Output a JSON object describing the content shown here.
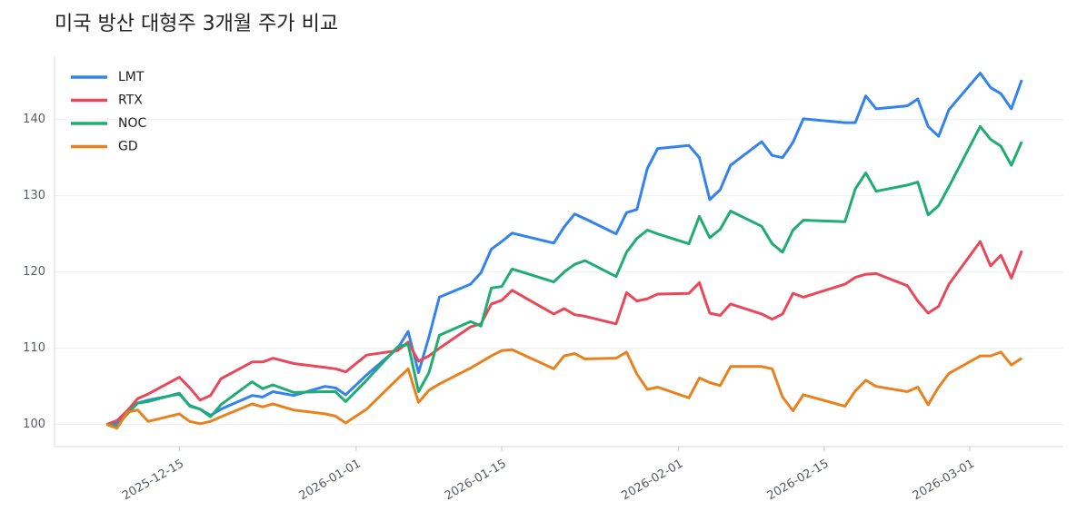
{
  "chart_data": {
    "type": "line",
    "title": "미국 방산 대형주 3개월 주가 비교",
    "x": [
      "2025-12-08",
      "2025-12-09",
      "2025-12-10",
      "2025-12-11",
      "2025-12-12",
      "2025-12-15",
      "2025-12-16",
      "2025-12-17",
      "2025-12-18",
      "2025-12-19",
      "2025-12-22",
      "2025-12-23",
      "2025-12-24",
      "2025-12-26",
      "2025-12-29",
      "2025-12-30",
      "2025-12-31",
      "2026-01-02",
      "2026-01-05",
      "2026-01-06",
      "2026-01-07",
      "2026-01-08",
      "2026-01-09",
      "2026-01-12",
      "2026-01-13",
      "2026-01-14",
      "2026-01-15",
      "2026-01-16",
      "2026-01-20",
      "2026-01-21",
      "2026-01-22",
      "2026-01-23",
      "2026-01-26",
      "2026-01-27",
      "2026-01-28",
      "2026-01-29",
      "2026-01-30",
      "2026-02-02",
      "2026-02-03",
      "2026-02-04",
      "2026-02-05",
      "2026-02-06",
      "2026-02-09",
      "2026-02-10",
      "2026-02-11",
      "2026-02-12",
      "2026-02-13",
      "2026-02-17",
      "2026-02-18",
      "2026-02-19",
      "2026-02-20",
      "2026-02-23",
      "2026-02-24",
      "2026-02-25",
      "2026-02-26",
      "2026-02-27",
      "2026-03-02",
      "2026-03-03",
      "2026-03-04",
      "2026-03-05",
      "2026-03-06"
    ],
    "series": [
      {
        "name": "LMT",
        "color": "#3382ee",
        "values": [
          100,
          100.2,
          101.8,
          102.8,
          103.2,
          104.0,
          102.5,
          102.0,
          101.2,
          102.0,
          103.8,
          103.6,
          104.3,
          103.8,
          105.0,
          104.8,
          103.9,
          106.5,
          110.0,
          112.2,
          106.8,
          111.5,
          116.7,
          118.4,
          119.9,
          123.0,
          124.0,
          125.1,
          123.8,
          125.9,
          127.6,
          127.0,
          125.0,
          127.8,
          128.2,
          133.6,
          136.2,
          136.6,
          135.0,
          129.5,
          130.8,
          134.0,
          137.1,
          135.3,
          135.0,
          137.0,
          140.1,
          139.6,
          139.6,
          143.1,
          141.4,
          141.8,
          142.7,
          139.1,
          137.8,
          141.3,
          146.1,
          144.2,
          143.4,
          141.4,
          145.2
        ]
      },
      {
        "name": "RTX",
        "color": "#e8485a",
        "values": [
          100,
          100.5,
          101.8,
          103.4,
          104.0,
          106.2,
          104.8,
          103.2,
          103.8,
          106.0,
          108.2,
          108.2,
          108.7,
          108.0,
          107.5,
          107.3,
          106.9,
          109.1,
          109.7,
          110.8,
          108.3,
          109.0,
          110.0,
          112.8,
          113.2,
          115.8,
          116.3,
          117.6,
          114.5,
          115.2,
          114.4,
          114.2,
          113.2,
          117.3,
          116.2,
          116.5,
          117.1,
          117.2,
          118.6,
          114.6,
          114.3,
          115.8,
          114.5,
          113.8,
          114.5,
          117.2,
          116.7,
          118.4,
          119.3,
          119.7,
          119.8,
          118.2,
          116.2,
          114.6,
          115.5,
          118.4,
          124.0,
          120.8,
          122.2,
          119.2,
          122.8
        ]
      },
      {
        "name": "NOC",
        "color": "#20ad73",
        "values": [
          100,
          99.8,
          101.4,
          102.8,
          103.0,
          104.1,
          102.4,
          102.0,
          101.0,
          102.6,
          105.6,
          104.7,
          105.2,
          104.2,
          104.3,
          104.3,
          103.0,
          105.8,
          110.2,
          110.5,
          104.3,
          106.8,
          111.7,
          113.5,
          112.9,
          117.9,
          118.1,
          120.4,
          118.7,
          120.0,
          121.0,
          121.5,
          119.4,
          122.6,
          124.4,
          125.5,
          125.0,
          123.7,
          127.3,
          124.5,
          125.6,
          128.0,
          126.0,
          123.7,
          122.6,
          125.5,
          126.8,
          126.6,
          130.9,
          133.0,
          130.6,
          131.4,
          131.8,
          127.5,
          128.7,
          131.2,
          139.1,
          137.4,
          136.5,
          134.0,
          137.1
        ]
      },
      {
        "name": "GD",
        "color": "#e8821e",
        "values": [
          100,
          99.5,
          101.6,
          101.9,
          100.4,
          101.4,
          100.4,
          100.1,
          100.4,
          101.0,
          102.7,
          102.3,
          102.7,
          101.9,
          101.4,
          101.1,
          100.2,
          102.0,
          106.0,
          107.3,
          102.9,
          104.5,
          105.3,
          107.4,
          108.2,
          109.0,
          109.7,
          109.8,
          107.3,
          109.0,
          109.3,
          108.6,
          108.7,
          109.5,
          106.6,
          104.6,
          104.9,
          103.5,
          106.1,
          105.5,
          105.1,
          107.6,
          107.6,
          107.3,
          103.6,
          101.8,
          103.9,
          102.4,
          104.4,
          105.8,
          105.0,
          104.3,
          104.9,
          102.6,
          104.9,
          106.7,
          109.0,
          109.0,
          109.5,
          107.8,
          108.7
        ]
      }
    ],
    "xlim": [
      "2025-12-03",
      "2026-03-10"
    ],
    "xticks": [
      "2025-12-15",
      "2026-01-01",
      "2026-01-15",
      "2026-02-01",
      "2026-02-15",
      "2026-03-01"
    ],
    "ylim": [
      97.1,
      148.3
    ],
    "yticks": [
      100,
      110,
      120,
      130,
      140
    ],
    "grid": true,
    "legend": "upper-left"
  }
}
